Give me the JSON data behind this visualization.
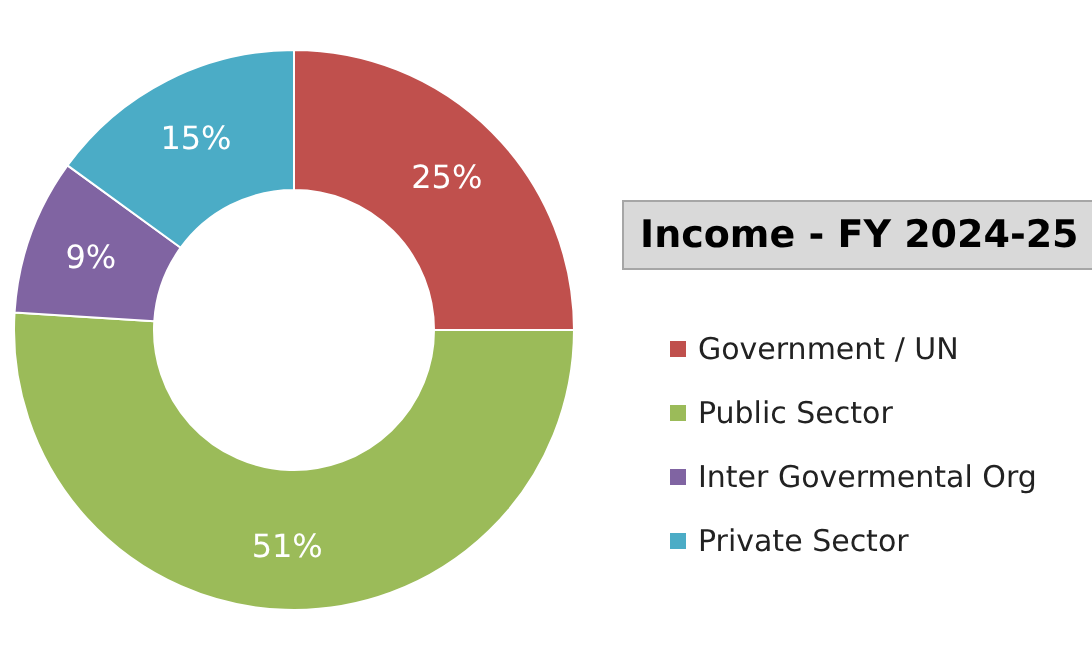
{
  "chart_data": {
    "type": "donut",
    "title": "Income - FY 2024-25",
    "categories": [
      "Government / UN",
      "Public Sector",
      "Inter Govermental Org",
      "Private Sector"
    ],
    "values": [
      25,
      51,
      9,
      15
    ],
    "value_labels": [
      "25%",
      "51%",
      "9%",
      "15%"
    ],
    "colors": [
      "#c0504d",
      "#9bbb59",
      "#8064a2",
      "#4bacc6"
    ],
    "legend": "right"
  }
}
